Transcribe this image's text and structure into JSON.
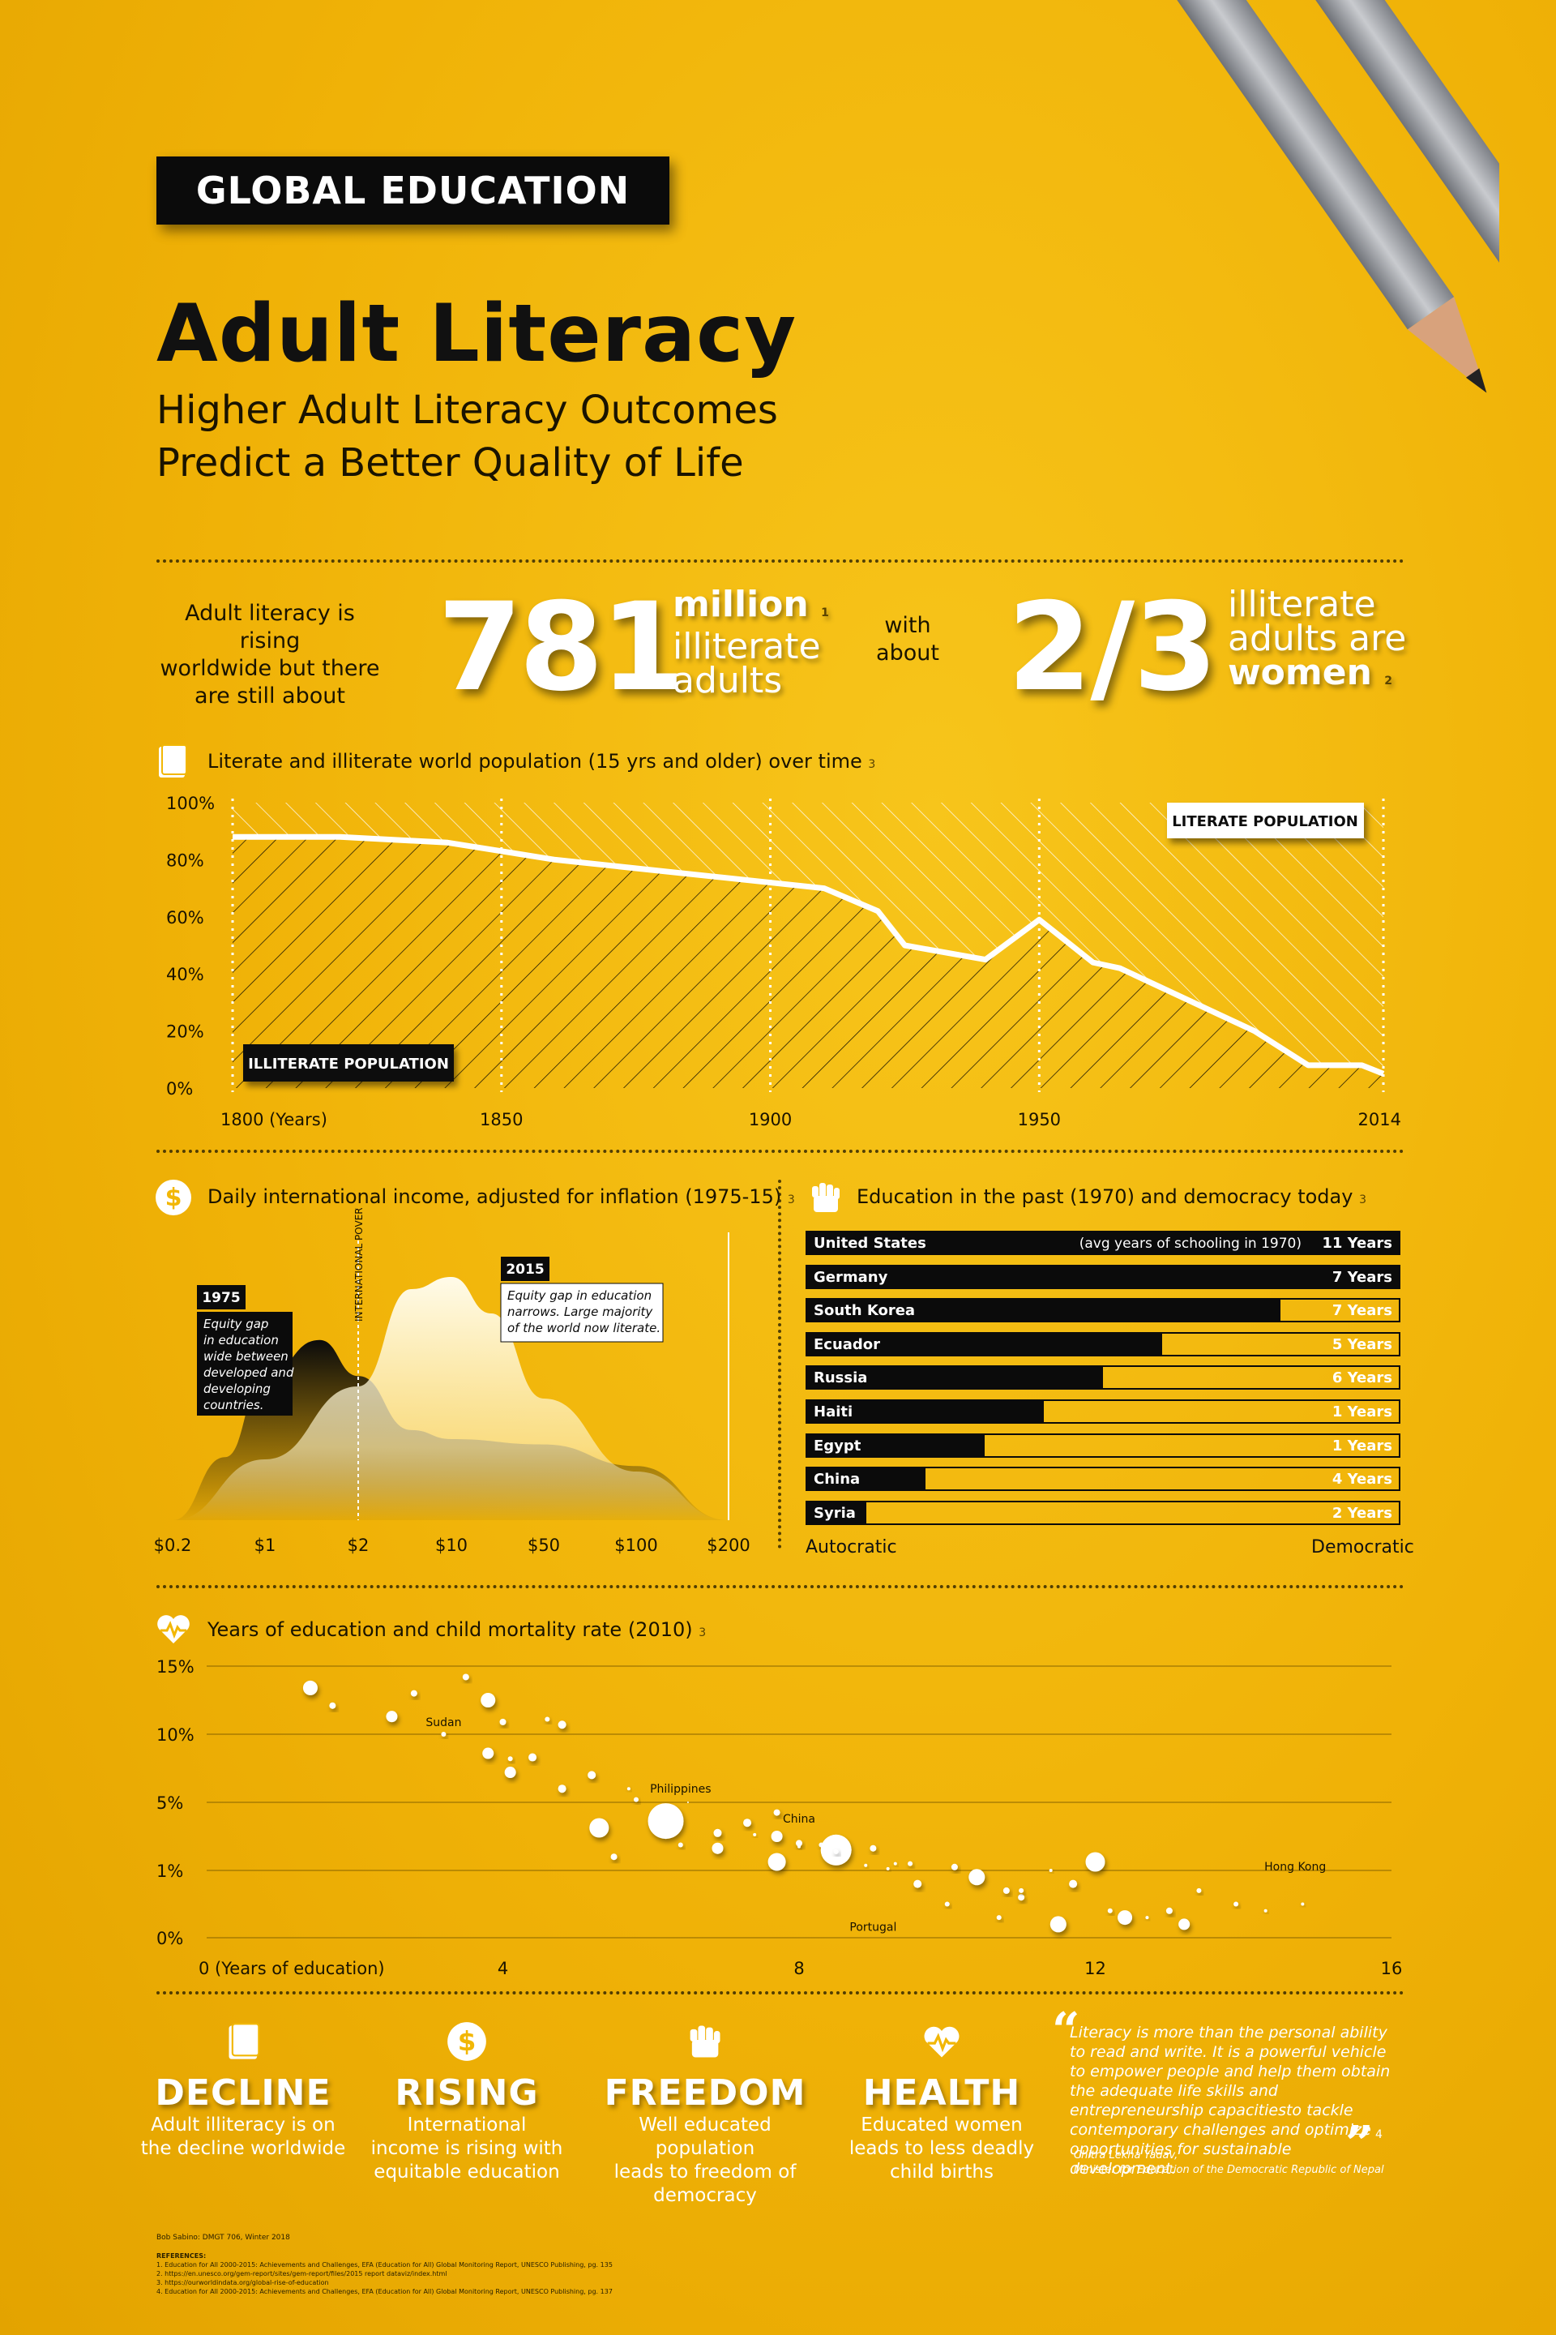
{
  "header": {
    "tag": "GLOBAL EDUCATION",
    "title": "Adult Literacy",
    "subtitle_line1": "Higher Adult Literacy Outcomes",
    "subtitle_line2": "Predict a Better Quality of Life"
  },
  "stats": {
    "lead_line1": "Adult literacy is rising",
    "lead_line2": "worldwide but there",
    "lead_line3": "are still about",
    "big_number": "781",
    "million": "million",
    "illiterate": "illiterate",
    "adults": "adults",
    "ref1": "1",
    "with": "with",
    "about": "about",
    "fraction": "2/3",
    "illiterate2": "illiterate",
    "adults_are": "adults are",
    "women": "women",
    "ref2": "2"
  },
  "colors": {
    "background": "#f2b705",
    "ink": "#0b0b0b",
    "white": "#ffffff"
  },
  "sections": {
    "population_title": "Literate and illiterate world population (15 yrs and older) over time",
    "population_ref": "3",
    "income_title": "Daily international income, adjusted for inflation (1975-15)",
    "income_ref": "3",
    "democracy_title": "Education in the past (1970) and democracy today",
    "democracy_ref": "3",
    "mortality_title": "Years of education and child mortality rate (2010)",
    "mortality_ref": "3"
  },
  "chart_data": [
    {
      "type": "line",
      "y_tick_labels": [
        "100%",
        "80%",
        "60%",
        "40%",
        "20%",
        "0%"
      ],
      "x_tick_labels": [
        "1800 (Years)",
        "1850",
        "1900",
        "1950",
        "2014"
      ],
      "ylim": [
        0,
        100
      ],
      "xlim": [
        1800,
        2014
      ],
      "series": [
        {
          "name": "ILLITERATE POPULATION",
          "x": [
            1800,
            1820,
            1840,
            1860,
            1880,
            1900,
            1910,
            1920,
            1925,
            1940,
            1950,
            1960,
            1965,
            1990,
            2000,
            2010,
            2014
          ],
          "y": [
            88,
            88,
            86,
            80,
            76,
            72,
            70,
            62,
            50,
            45,
            59,
            44,
            42,
            20,
            8,
            8,
            5
          ]
        }
      ],
      "labels": {
        "upper": "LITERATE POPULATION",
        "lower": "ILLITERATE POPULATION"
      }
    },
    {
      "type": "area",
      "x_tick_labels": [
        "$0.2",
        "$1",
        "$2",
        "$10",
        "$50",
        "$100",
        "$200"
      ],
      "poverty_line_label": "INTERNATIONAL POVERTY LINE",
      "series": [
        {
          "name": "1975",
          "note": "Equity gap in education wide between developed and developing countries.",
          "x": [
            0.2,
            0.5,
            1,
            1.5,
            2,
            5,
            10,
            50,
            100,
            200
          ],
          "y": [
            0.0,
            0.35,
            0.8,
            1.0,
            0.8,
            0.5,
            0.45,
            0.42,
            0.3,
            0.0
          ]
        },
        {
          "name": "2015",
          "note": "Equity gap in education narrows. Large majority of the world now literate.",
          "x": [
            0.2,
            1,
            2,
            5,
            10,
            20,
            50,
            100,
            200
          ],
          "y": [
            0.0,
            0.25,
            0.55,
            0.95,
            1.0,
            0.85,
            0.5,
            0.2,
            0.0
          ]
        }
      ]
    },
    {
      "type": "bar",
      "scale_left": "Autocratic",
      "scale_right": "Democratic",
      "first_row_note": "(avg years of schooling in 1970)",
      "categories": [
        "United States",
        "Germany",
        "South Korea",
        "Ecuador",
        "Russia",
        "Haiti",
        "Egypt",
        "China",
        "Syria"
      ],
      "values": [
        1.0,
        1.0,
        0.8,
        0.6,
        0.5,
        0.4,
        0.3,
        0.2,
        0.1
      ],
      "value_labels": [
        "11 Years",
        "7 Years",
        "7 Years",
        "5 Years",
        "6 Years",
        "1 Years",
        "1 Years",
        "4 Years",
        "2 Years"
      ]
    },
    {
      "type": "scatter",
      "x_tick_labels": [
        "0 (Years of education)",
        "4",
        "8",
        "12",
        "16"
      ],
      "y_tick_labels": [
        "15%",
        "10%",
        "5%",
        "1%",
        "0%"
      ],
      "xlim": [
        0,
        16
      ],
      "annotations": [
        "Sudan",
        "Philippines",
        "China",
        "Portugal",
        "Hong Kong"
      ],
      "points": [
        {
          "x": 1.4,
          "y": 13.4,
          "s": 9
        },
        {
          "x": 1.7,
          "y": 12.1,
          "s": 4
        },
        {
          "x": 2.5,
          "y": 11.3,
          "s": 7
        },
        {
          "x": 2.8,
          "y": 13.0,
          "s": 4
        },
        {
          "x": 3.2,
          "y": 10.0,
          "s": 3
        },
        {
          "x": 3.5,
          "y": 14.2,
          "s": 4
        },
        {
          "x": 3.8,
          "y": 12.5,
          "s": 9
        },
        {
          "x": 4.0,
          "y": 10.9,
          "s": 4
        },
        {
          "x": 3.8,
          "y": 8.6,
          "s": 7
        },
        {
          "x": 4.1,
          "y": 8.2,
          "s": 3
        },
        {
          "x": 4.1,
          "y": 7.2,
          "s": 7
        },
        {
          "x": 4.4,
          "y": 8.3,
          "s": 5
        },
        {
          "x": 4.6,
          "y": 11.1,
          "s": 3
        },
        {
          "x": 4.8,
          "y": 10.7,
          "s": 5
        },
        {
          "x": 4.8,
          "y": 6.0,
          "s": 5
        },
        {
          "x": 5.2,
          "y": 7.0,
          "s": 5
        },
        {
          "x": 5.7,
          "y": 6.0,
          "s": 2
        },
        {
          "x": 5.8,
          "y": 5.2,
          "s": 3
        },
        {
          "x": 6.5,
          "y": 5.0,
          "s": 1
        },
        {
          "x": 5.3,
          "y": 3.5,
          "s": 12
        },
        {
          "x": 6.2,
          "y": 3.9,
          "s": 22
        },
        {
          "x": 5.5,
          "y": 1.8,
          "s": 4
        },
        {
          "x": 6.4,
          "y": 2.5,
          "s": 3
        },
        {
          "x": 6.9,
          "y": 3.2,
          "s": 5
        },
        {
          "x": 6.9,
          "y": 2.3,
          "s": 7
        },
        {
          "x": 7.3,
          "y": 3.8,
          "s": 5
        },
        {
          "x": 7.4,
          "y": 3.1,
          "s": 2
        },
        {
          "x": 7.7,
          "y": 4.4,
          "s": 4
        },
        {
          "x": 7.7,
          "y": 3.0,
          "s": 7
        },
        {
          "x": 7.7,
          "y": 1.5,
          "s": 11
        },
        {
          "x": 8.0,
          "y": 2.6,
          "s": 4
        },
        {
          "x": 8.0,
          "y": 2.4,
          "s": 2
        },
        {
          "x": 8.3,
          "y": 2.5,
          "s": 3
        },
        {
          "x": 8.5,
          "y": 2.7,
          "s": 2
        },
        {
          "x": 8.5,
          "y": 2.2,
          "s": 19
        },
        {
          "x": 8.5,
          "y": 2.1,
          "s": 3
        },
        {
          "x": 9.0,
          "y": 2.3,
          "s": 4
        },
        {
          "x": 8.9,
          "y": 1.3,
          "s": 2
        },
        {
          "x": 9.2,
          "y": 1.1,
          "s": 2
        },
        {
          "x": 9.3,
          "y": 1.4,
          "s": 2
        },
        {
          "x": 9.5,
          "y": 1.4,
          "s": 3
        },
        {
          "x": 9.6,
          "y": 0.8,
          "s": 5
        },
        {
          "x": 10.0,
          "y": 0.5,
          "s": 3
        },
        {
          "x": 10.1,
          "y": 1.2,
          "s": 4
        },
        {
          "x": 10.4,
          "y": 0.9,
          "s": 10
        },
        {
          "x": 10.8,
          "y": 0.7,
          "s": 4
        },
        {
          "x": 11.0,
          "y": 0.6,
          "s": 4
        },
        {
          "x": 10.7,
          "y": 0.3,
          "s": 3
        },
        {
          "x": 11.0,
          "y": 0.7,
          "s": 3
        },
        {
          "x": 11.4,
          "y": 1.0,
          "s": 2
        },
        {
          "x": 11.5,
          "y": 0.2,
          "s": 10
        },
        {
          "x": 11.7,
          "y": 0.8,
          "s": 5
        },
        {
          "x": 12.0,
          "y": 1.5,
          "s": 12
        },
        {
          "x": 12.2,
          "y": 0.4,
          "s": 3
        },
        {
          "x": 12.4,
          "y": 0.3,
          "s": 9
        },
        {
          "x": 12.7,
          "y": 0.3,
          "s": 2
        },
        {
          "x": 13.0,
          "y": 0.4,
          "s": 4
        },
        {
          "x": 13.2,
          "y": 0.2,
          "s": 7
        },
        {
          "x": 13.4,
          "y": 0.7,
          "s": 3
        },
        {
          "x": 13.9,
          "y": 0.5,
          "s": 3
        },
        {
          "x": 14.3,
          "y": 0.4,
          "s": 2
        },
        {
          "x": 14.8,
          "y": 0.5,
          "s": 2
        }
      ]
    }
  ],
  "footer": {
    "items": [
      {
        "word": "DECLINE",
        "line1": "Adult illiteracy is on",
        "line2": "the decline worldwide",
        "line3": ""
      },
      {
        "word": "RISING",
        "line1": "International",
        "line2": "income is rising with",
        "line3": "equitable education"
      },
      {
        "word": "FREEDOM",
        "line1": "Well educated population",
        "line2": "leads to freedom of",
        "line3": "democracy"
      },
      {
        "word": "HEALTH",
        "line1": "Educated women",
        "line2": "leads to less deadly",
        "line3": "child births"
      }
    ],
    "quote": "Literacy is more than the personal ability to read and write. It is a powerful vehicle to empower people and help them obtain the adequate life skills and entrepreneurship capacitiesto tackle contemporary challenges and optimize opportunities for sustainable development.",
    "quote_ref": "4",
    "author_name": "Chitra Lekha Yadav,",
    "author_title": "Minister for Education of the Democratic Republic of Nepal",
    "credit": "Bob Sabino: DMGT 706, Winter 2018",
    "references_heading": "REFERENCES:",
    "references": [
      "1.   Education for All 2000-2015: Achievements and Challenges, EFA (Education for All) Global Monitoring Report, UNESCO Publishing, pg. 135",
      "2.   https://en.unesco.org/gem-report/sites/gem-report/files/2015 report dataviz/index.html",
      "3.   https://ourworldindata.org/global-rise-of-education",
      "4.   Education for All 2000-2015: Achievements and Challenges, EFA (Education for All) Global Monitoring Report, UNESCO Publishing, pg. 137"
    ]
  }
}
